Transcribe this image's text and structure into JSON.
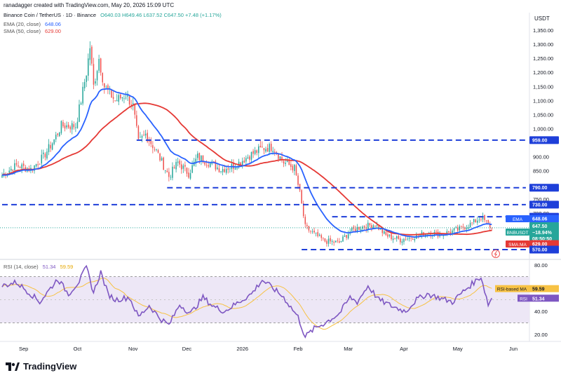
{
  "header": {
    "created": "ranadagger created with TradingView.com, May 20, 2026 15:09 UTC",
    "symbol": "Binance Coin / TetherUS · 1D · Binance",
    "ohlc": "O640.03 H649.46 L637.52 C647.50 +7.48 (+1.17%)",
    "ema_label": "EMA (20, close)",
    "ema_value": "648.06",
    "sma_label": "SMA (50, close)",
    "sma_value": "629.00",
    "rsi_label": "RSI (14, close)",
    "rsi_value": "51.34",
    "rsi_ma_value": "59.59"
  },
  "colors": {
    "up": "#26a69a",
    "down": "#ef5350",
    "ema": "#2962ff",
    "sma": "#e53935",
    "rsi": "#7e57c2",
    "rsi_ma": "#f7c244",
    "level": "#1e3fd9",
    "band": "#ede7f6"
  },
  "axis": {
    "currency": "USDT",
    "price_ticks": [
      "1,350.00",
      "1,300.00",
      "1,250.00",
      "1,200.00",
      "1,150.00",
      "1,100.00",
      "1,050.00",
      "1,000.00",
      "900.00",
      "850.00",
      "750.00",
      "700.00",
      "650.00",
      "600.00"
    ],
    "rsi_ticks": [
      "80.00",
      "60.00",
      "40.00",
      "20.00"
    ],
    "x_labels": [
      "Sep",
      "Oct",
      "Nov",
      "Dec",
      "2026",
      "Feb",
      "Mar",
      "Apr",
      "May",
      "Jun"
    ]
  },
  "badges": {
    "l959": "959.00",
    "l790": "790.00",
    "l730": "730.00",
    "l687": "687.00",
    "ema_tag": "EMA",
    "ema_val": "648.06",
    "symbol_tag": "BNBUSDT",
    "price": "647.50",
    "change": "−18.94%",
    "countdown": "08:50:50",
    "sma_tag": "SMA:MA",
    "sma_val": "629.00",
    "l570": "570.00",
    "rsi_ma_tag": "RSI-based MA",
    "rsi_ma_val": "59.59",
    "rsi_tag": "RSI",
    "rsi_val": "51.34"
  },
  "footer": {
    "brand": "TradingView"
  },
  "chart_data": [
    {
      "type": "candlestick",
      "title": "Binance Coin / TetherUS · 1D · Binance",
      "ylabel": "USDT",
      "ylim": [
        540,
        1400
      ],
      "x": [
        "Sep",
        "Oct",
        "Nov",
        "Dec",
        "2026",
        "Feb",
        "Mar",
        "Apr",
        "May",
        "Jun"
      ],
      "anchors_close": [
        [
          "2025-08-20",
          835
        ],
        [
          "2025-08-28",
          870
        ],
        [
          "2025-09-05",
          855
        ],
        [
          "2025-09-12",
          900
        ],
        [
          "2025-09-18",
          960
        ],
        [
          "2025-09-22",
          1010
        ],
        [
          "2025-09-30",
          1010
        ],
        [
          "2025-10-03",
          1100
        ],
        [
          "2025-10-06",
          1200
        ],
        [
          "2025-10-08",
          1290
        ],
        [
          "2025-10-10",
          1150
        ],
        [
          "2025-10-13",
          1250
        ],
        [
          "2025-10-16",
          1150
        ],
        [
          "2025-10-22",
          1100
        ],
        [
          "2025-10-28",
          1120
        ],
        [
          "2025-11-01",
          1080
        ],
        [
          "2025-11-04",
          950
        ],
        [
          "2025-11-08",
          980
        ],
        [
          "2025-11-14",
          920
        ],
        [
          "2025-11-21",
          830
        ],
        [
          "2025-11-26",
          880
        ],
        [
          "2025-12-02",
          840
        ],
        [
          "2025-12-07",
          900
        ],
        [
          "2025-12-13",
          880
        ],
        [
          "2025-12-20",
          855
        ],
        [
          "2025-12-28",
          870
        ],
        [
          "2026-01-05",
          905
        ],
        [
          "2026-01-12",
          930
        ],
        [
          "2026-01-18",
          935
        ],
        [
          "2026-01-24",
          880
        ],
        [
          "2026-01-30",
          860
        ],
        [
          "2026-02-02",
          770
        ],
        [
          "2026-02-05",
          650
        ],
        [
          "2026-02-10",
          625
        ],
        [
          "2026-02-16",
          600
        ],
        [
          "2026-02-24",
          595
        ],
        [
          "2026-03-02",
          635
        ],
        [
          "2026-03-08",
          650
        ],
        [
          "2026-03-16",
          660
        ],
        [
          "2026-03-22",
          620
        ],
        [
          "2026-03-30",
          605
        ],
        [
          "2026-04-06",
          615
        ],
        [
          "2026-04-14",
          630
        ],
        [
          "2026-04-22",
          625
        ],
        [
          "2026-05-01",
          640
        ],
        [
          "2026-05-08",
          660
        ],
        [
          "2026-05-14",
          685
        ],
        [
          "2026-05-20",
          647.5
        ]
      ],
      "series": [
        {
          "name": "EMA (20, close)",
          "last": 648.06
        },
        {
          "name": "SMA (50, close)",
          "last": 629.0
        }
      ],
      "horizontal_levels": [
        959,
        790,
        730,
        687,
        570
      ],
      "last_price": 647.5,
      "change_pct": -18.94
    },
    {
      "type": "line",
      "title": "RSI (14, close)",
      "ylim": [
        10,
        85
      ],
      "bands": [
        30,
        70
      ],
      "anchors": [
        [
          "2025-08-20",
          62
        ],
        [
          "2025-08-28",
          65
        ],
        [
          "2025-09-05",
          55
        ],
        [
          "2025-09-10",
          48
        ],
        [
          "2025-09-16",
          60
        ],
        [
          "2025-09-20",
          68
        ],
        [
          "2025-09-26",
          55
        ],
        [
          "2025-10-02",
          66
        ],
        [
          "2025-10-06",
          78
        ],
        [
          "2025-10-10",
          56
        ],
        [
          "2025-10-14",
          74
        ],
        [
          "2025-10-18",
          55
        ],
        [
          "2025-10-22",
          50
        ],
        [
          "2025-10-30",
          52
        ],
        [
          "2025-11-04",
          35
        ],
        [
          "2025-11-10",
          45
        ],
        [
          "2025-11-16",
          34
        ],
        [
          "2025-11-21",
          28
        ],
        [
          "2025-11-27",
          46
        ],
        [
          "2025-12-03",
          38
        ],
        [
          "2025-12-10",
          52
        ],
        [
          "2025-12-16",
          44
        ],
        [
          "2025-12-22",
          40
        ],
        [
          "2025-12-30",
          48
        ],
        [
          "2026-01-06",
          55
        ],
        [
          "2026-01-12",
          67
        ],
        [
          "2026-01-18",
          60
        ],
        [
          "2026-01-24",
          52
        ],
        [
          "2026-02-01",
          35
        ],
        [
          "2026-02-05",
          18
        ],
        [
          "2026-02-10",
          25
        ],
        [
          "2026-02-16",
          30
        ],
        [
          "2026-02-24",
          38
        ],
        [
          "2026-03-02",
          52
        ],
        [
          "2026-03-06",
          48
        ],
        [
          "2026-03-12",
          62
        ],
        [
          "2026-03-18",
          50
        ],
        [
          "2026-03-26",
          44
        ],
        [
          "2026-04-02",
          40
        ],
        [
          "2026-04-08",
          50
        ],
        [
          "2026-04-14",
          55
        ],
        [
          "2026-04-20",
          52
        ],
        [
          "2026-04-28",
          48
        ],
        [
          "2026-05-04",
          57
        ],
        [
          "2026-05-10",
          65
        ],
        [
          "2026-05-14",
          70
        ],
        [
          "2026-05-18",
          46
        ],
        [
          "2026-05-20",
          51.34
        ]
      ],
      "rsi_ma_last": 59.59
    }
  ]
}
